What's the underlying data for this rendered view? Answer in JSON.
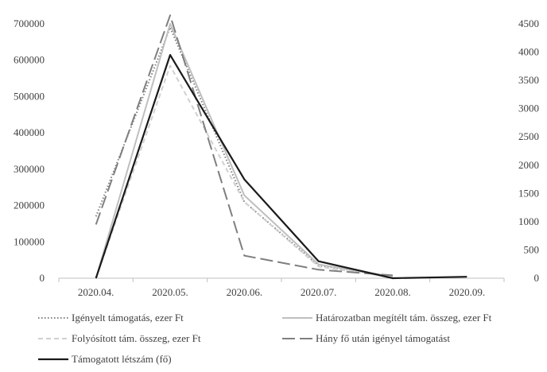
{
  "chart_data": {
    "type": "line",
    "categories": [
      "2020.04.",
      "2020.05.",
      "2020.06.",
      "2020.07.",
      "2020.08.",
      "2020.09."
    ],
    "y_left": {
      "ylim": [
        0,
        700000
      ],
      "ticks": [
        0,
        100000,
        200000,
        300000,
        400000,
        500000,
        600000,
        700000
      ]
    },
    "y_right": {
      "ylim": [
        0,
        4500
      ],
      "ticks": [
        0,
        500,
        1000,
        1500,
        2000,
        2500,
        3000,
        3500,
        4000,
        4500
      ]
    },
    "grid": false,
    "legend_position": "bottom",
    "series": [
      {
        "name": "Igényelt támogatás, ezer Ft",
        "axis": "left",
        "style": "dotted",
        "color": "#7f7f7f",
        "values": [
          170000,
          690000,
          210000,
          35000,
          5000,
          null
        ]
      },
      {
        "name": "Határozatban megítélt tám. összeg, ezer Ft",
        "axis": "left",
        "style": "solid",
        "color": "#bfbfbf",
        "values": [
          0,
          700000,
          228000,
          38000,
          4000,
          null
        ]
      },
      {
        "name": "Folyósított tám. összeg, ezer Ft",
        "axis": "left",
        "style": "dashed",
        "color": "#d0d0d0",
        "values": [
          0,
          585000,
          210000,
          32000,
          3000,
          null
        ]
      },
      {
        "name": "Hány fő után igényel támogatást",
        "axis": "right",
        "style": "longdash",
        "color": "#7f7f7f",
        "values": [
          950,
          4650,
          400,
          150,
          50,
          null
        ]
      },
      {
        "name": "Támogatott létszám (fő)",
        "axis": "right",
        "style": "solid",
        "color": "#1a1a1a",
        "values": [
          0,
          3950,
          1750,
          300,
          0,
          25
        ]
      }
    ]
  }
}
